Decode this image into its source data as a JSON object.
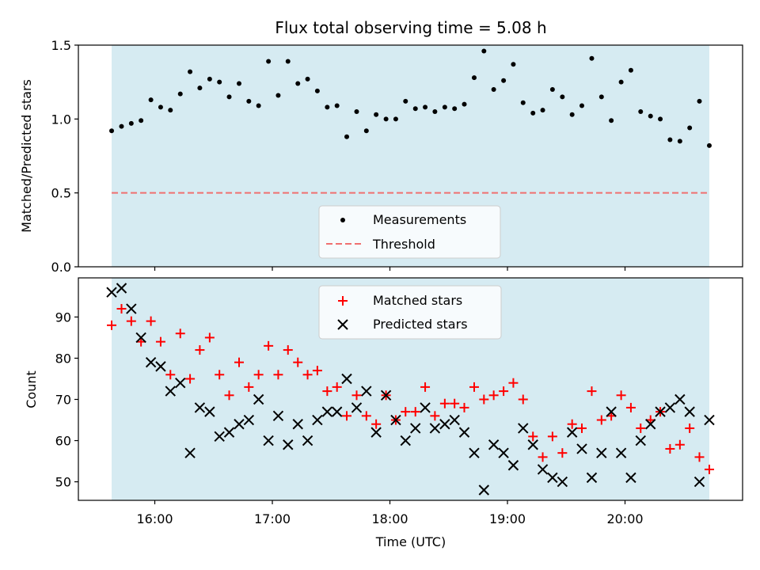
{
  "chart_data": [
    {
      "type": "scatter",
      "title": "Flux total observing time = 5.08 h",
      "ylabel": "Matched/Predicted stars",
      "ylim": [
        0,
        1.5
      ],
      "yticks": [
        "0.0",
        "0.5",
        "1.0",
        "1.5"
      ],
      "xlim_hours": [
        15.35,
        21.0
      ],
      "observing_window_hours": [
        15.633,
        20.717
      ],
      "grid": false,
      "legend_position": "bottom-center",
      "series": [
        {
          "name": "Measurements",
          "marker": "dot",
          "color": "#000000",
          "x_hours": [
            15.633,
            15.717,
            15.8,
            15.883,
            15.967,
            16.05,
            16.133,
            16.217,
            16.3,
            16.383,
            16.467,
            16.55,
            16.633,
            16.717,
            16.8,
            16.883,
            16.967,
            17.05,
            17.133,
            17.217,
            17.3,
            17.383,
            17.467,
            17.55,
            17.633,
            17.717,
            17.8,
            17.883,
            17.967,
            18.05,
            18.133,
            18.217,
            18.3,
            18.383,
            18.467,
            18.55,
            18.633,
            18.717,
            18.8,
            18.883,
            18.967,
            19.05,
            19.133,
            19.217,
            19.3,
            19.383,
            19.467,
            19.55,
            19.633,
            19.717,
            19.8,
            19.883,
            19.967,
            20.05,
            20.133,
            20.217,
            20.3,
            20.383,
            20.467,
            20.55,
            20.633,
            20.717
          ],
          "y": [
            0.92,
            0.95,
            0.97,
            0.99,
            1.13,
            1.08,
            1.06,
            1.17,
            1.32,
            1.21,
            1.27,
            1.25,
            1.15,
            1.24,
            1.12,
            1.09,
            1.39,
            1.16,
            1.39,
            1.24,
            1.27,
            1.19,
            1.08,
            1.09,
            0.88,
            1.05,
            0.92,
            1.03,
            1.0,
            1.0,
            1.12,
            1.07,
            1.08,
            1.05,
            1.08,
            1.07,
            1.1,
            1.28,
            1.46,
            1.2,
            1.26,
            1.37,
            1.11,
            1.04,
            1.06,
            1.2,
            1.15,
            1.03,
            1.09,
            1.41,
            1.15,
            0.99,
            1.25,
            1.33,
            1.05,
            1.02,
            1.0,
            0.86,
            0.85,
            0.94,
            1.12,
            0.82
          ]
        },
        {
          "name": "Threshold",
          "marker": "dashed-line",
          "color": "#f07070",
          "x_hours": [
            15.633,
            20.717
          ],
          "y": [
            0.5,
            0.5
          ]
        }
      ]
    },
    {
      "type": "scatter",
      "xlabel": "Time (UTC)",
      "ylabel": "Count",
      "ylim": [
        45.5,
        99.5
      ],
      "yticks": [
        "50",
        "60",
        "70",
        "80",
        "90"
      ],
      "xlim_hours": [
        15.35,
        21.0
      ],
      "xticks": [
        "16:00",
        "17:00",
        "18:00",
        "19:00",
        "20:00"
      ],
      "observing_window_hours": [
        15.633,
        20.717
      ],
      "grid": false,
      "legend_position": "top-center",
      "series": [
        {
          "name": "Matched stars",
          "marker": "plus",
          "color": "#ff0000",
          "x_hours": [
            15.633,
            15.717,
            15.8,
            15.883,
            15.967,
            16.05,
            16.133,
            16.217,
            16.3,
            16.383,
            16.467,
            16.55,
            16.633,
            16.717,
            16.8,
            16.883,
            16.967,
            17.05,
            17.133,
            17.217,
            17.3,
            17.383,
            17.467,
            17.55,
            17.633,
            17.717,
            17.8,
            17.883,
            17.967,
            18.05,
            18.133,
            18.217,
            18.3,
            18.383,
            18.467,
            18.55,
            18.633,
            18.717,
            18.8,
            18.883,
            18.967,
            19.05,
            19.133,
            19.217,
            19.3,
            19.383,
            19.467,
            19.55,
            19.633,
            19.717,
            19.8,
            19.883,
            19.967,
            20.05,
            20.133,
            20.217,
            20.3,
            20.383,
            20.467,
            20.55,
            20.633,
            20.717
          ],
          "y": [
            88,
            92,
            89,
            84,
            89,
            84,
            76,
            86,
            75,
            82,
            85,
            76,
            71,
            79,
            73,
            76,
            83,
            76,
            82,
            79,
            76,
            77,
            72,
            73,
            66,
            71,
            66,
            64,
            71,
            65,
            67,
            67,
            73,
            66,
            69,
            69,
            68,
            73,
            70,
            71,
            72,
            74,
            70,
            61,
            56,
            61,
            57,
            64,
            63,
            72,
            65,
            66,
            71,
            68,
            63,
            65,
            67,
            58,
            59,
            63,
            56,
            53
          ]
        },
        {
          "name": "Predicted stars",
          "marker": "x",
          "color": "#000000",
          "x_hours": [
            15.633,
            15.717,
            15.8,
            15.883,
            15.967,
            16.05,
            16.133,
            16.217,
            16.3,
            16.383,
            16.467,
            16.55,
            16.633,
            16.717,
            16.8,
            16.883,
            16.967,
            17.05,
            17.133,
            17.217,
            17.3,
            17.383,
            17.467,
            17.55,
            17.633,
            17.717,
            17.8,
            17.883,
            17.967,
            18.05,
            18.133,
            18.217,
            18.3,
            18.383,
            18.467,
            18.55,
            18.633,
            18.717,
            18.8,
            18.883,
            18.967,
            19.05,
            19.133,
            19.217,
            19.3,
            19.383,
            19.467,
            19.55,
            19.633,
            19.717,
            19.8,
            19.883,
            19.967,
            20.05,
            20.133,
            20.217,
            20.3,
            20.383,
            20.467,
            20.55,
            20.633,
            20.717
          ],
          "y": [
            96,
            97,
            92,
            85,
            79,
            78,
            72,
            74,
            57,
            68,
            67,
            61,
            62,
            64,
            65,
            70,
            60,
            66,
            59,
            64,
            60,
            65,
            67,
            67,
            75,
            68,
            72,
            62,
            71,
            65,
            60,
            63,
            68,
            63,
            64,
            65,
            62,
            57,
            48,
            59,
            57,
            54,
            63,
            59,
            53,
            51,
            50,
            62,
            58,
            51,
            57,
            67,
            57,
            51,
            60,
            64,
            67,
            68,
            70,
            67,
            50,
            65
          ]
        }
      ]
    }
  ]
}
